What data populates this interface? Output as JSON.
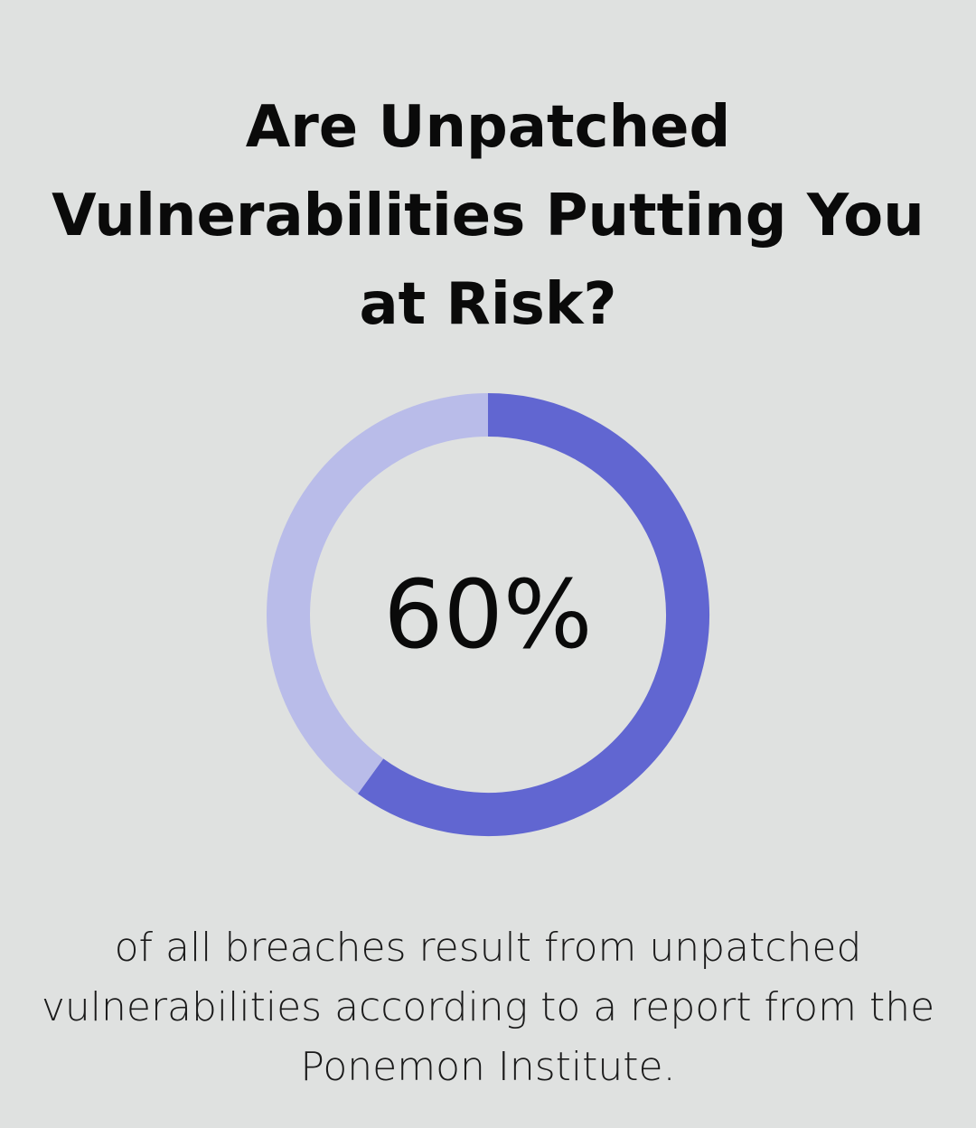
{
  "title": "Are Unpatched Vulnerabilities Putting You at Risk?",
  "chart_data": {
    "type": "pie",
    "variant": "donut",
    "values": [
      60,
      40
    ],
    "unit": "%",
    "center_label": "60%",
    "colors": [
      "#6166d1",
      "#b9bce9"
    ],
    "start_angle": "top",
    "direction": "clockwise"
  },
  "caption": "of all breaches result from unpatched vulnerabilities according to a report from the Ponemon Institute.",
  "colors": {
    "background": "#dfe1e0",
    "text": "#0a0a0a"
  }
}
